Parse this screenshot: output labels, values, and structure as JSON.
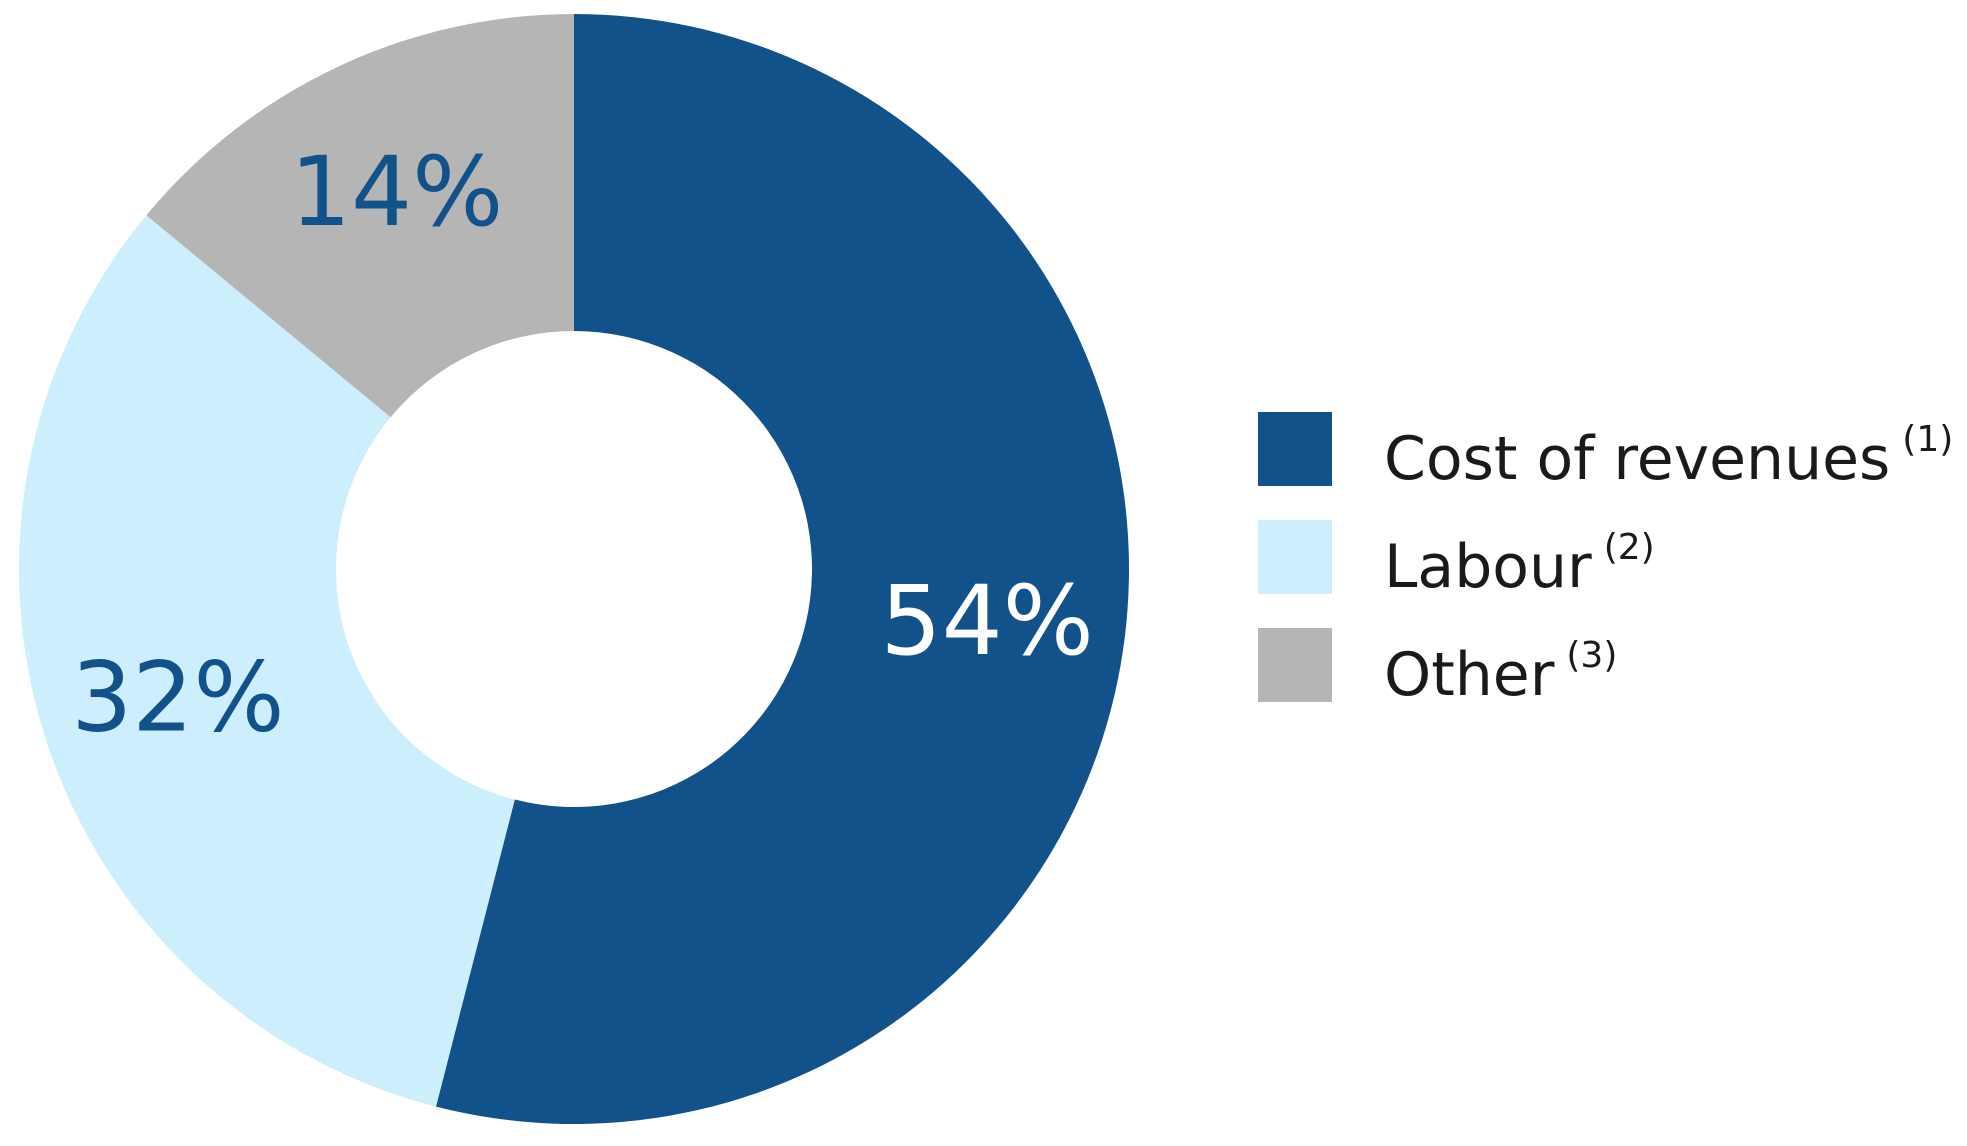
{
  "chart_data": {
    "type": "pie",
    "donut": true,
    "categories": [
      "Cost of revenues",
      "Labour",
      "Other"
    ],
    "footnotes": [
      "(1)",
      "(2)",
      "(3)"
    ],
    "values": [
      54,
      32,
      14
    ],
    "value_labels": [
      "54%",
      "32%",
      "14%"
    ],
    "colors": [
      "#12528a",
      "#cdeefc",
      "#b5b5b5"
    ],
    "label_colors": [
      "#ffffff",
      "#12528a",
      "#12528a"
    ],
    "start_angle": "12 o'clock",
    "direction": "clockwise",
    "legend_position": "right"
  }
}
